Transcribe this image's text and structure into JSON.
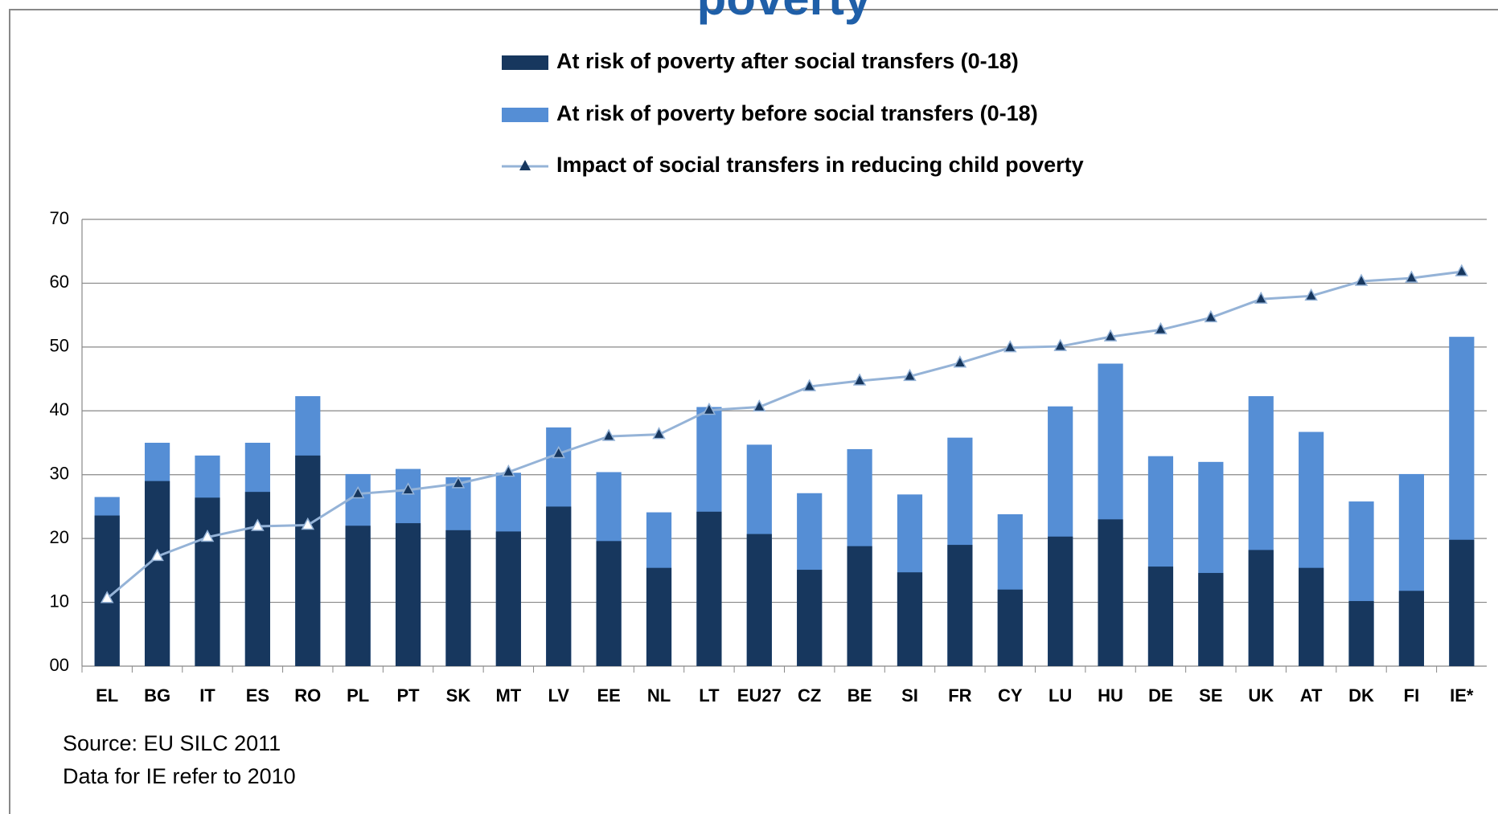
{
  "chart_data": {
    "type": "bar-line",
    "title": "poverty",
    "categories": [
      "EL",
      "BG",
      "IT",
      "ES",
      "RO",
      "PL",
      "PT",
      "SK",
      "MT",
      "LV",
      "EE",
      "NL",
      "LT",
      "EU27",
      "CZ",
      "BE",
      "SI",
      "FR",
      "CY",
      "LU",
      "HU",
      "DE",
      "SE",
      "UK",
      "AT",
      "DK",
      "FI",
      "IE*"
    ],
    "series": [
      {
        "name": "At risk of poverty after social transfers (0-18)",
        "type": "bar",
        "color": "#17375e",
        "values": [
          23.6,
          29,
          26.4,
          27.3,
          33,
          22,
          22.4,
          21.3,
          21.1,
          25,
          19.6,
          15.4,
          24.2,
          20.7,
          15.1,
          18.8,
          14.7,
          19,
          12,
          20.3,
          23,
          15.6,
          14.6,
          18.2,
          15.4,
          10.2,
          11.8,
          19.8
        ]
      },
      {
        "name": "At risk of poverty before social transfers (0-18)",
        "type": "bar",
        "color": "#558ed5",
        "values": [
          26.5,
          35,
          33,
          35,
          42.3,
          30.1,
          30.9,
          29.6,
          30.3,
          37.4,
          30.4,
          24.1,
          40.6,
          34.7,
          27.1,
          34,
          26.9,
          35.8,
          23.8,
          40.7,
          47.4,
          32.9,
          32,
          42.3,
          36.7,
          25.8,
          30.1,
          51.6
        ]
      },
      {
        "name": "Impact of social transfers in reducing child poverty",
        "type": "line",
        "color": "#95b3d7",
        "values": [
          10.6,
          17.2,
          20.2,
          21.9,
          22.1,
          27,
          27.6,
          28.6,
          30.4,
          33.3,
          36,
          36.3,
          40.1,
          40.6,
          43.8,
          44.7,
          45.4,
          47.5,
          49.9,
          50.1,
          51.6,
          52.7,
          54.6,
          57.5,
          58,
          60.3,
          60.8,
          61.8
        ]
      }
    ],
    "ylim": [
      0,
      70
    ],
    "yticks": [
      {
        "value": 0,
        "label": "00"
      },
      10,
      20,
      30,
      40,
      50,
      60,
      70
    ],
    "grid": true,
    "notes": [
      "Source: EU SILC 2011",
      "Data for IE refer to 2010"
    ]
  }
}
